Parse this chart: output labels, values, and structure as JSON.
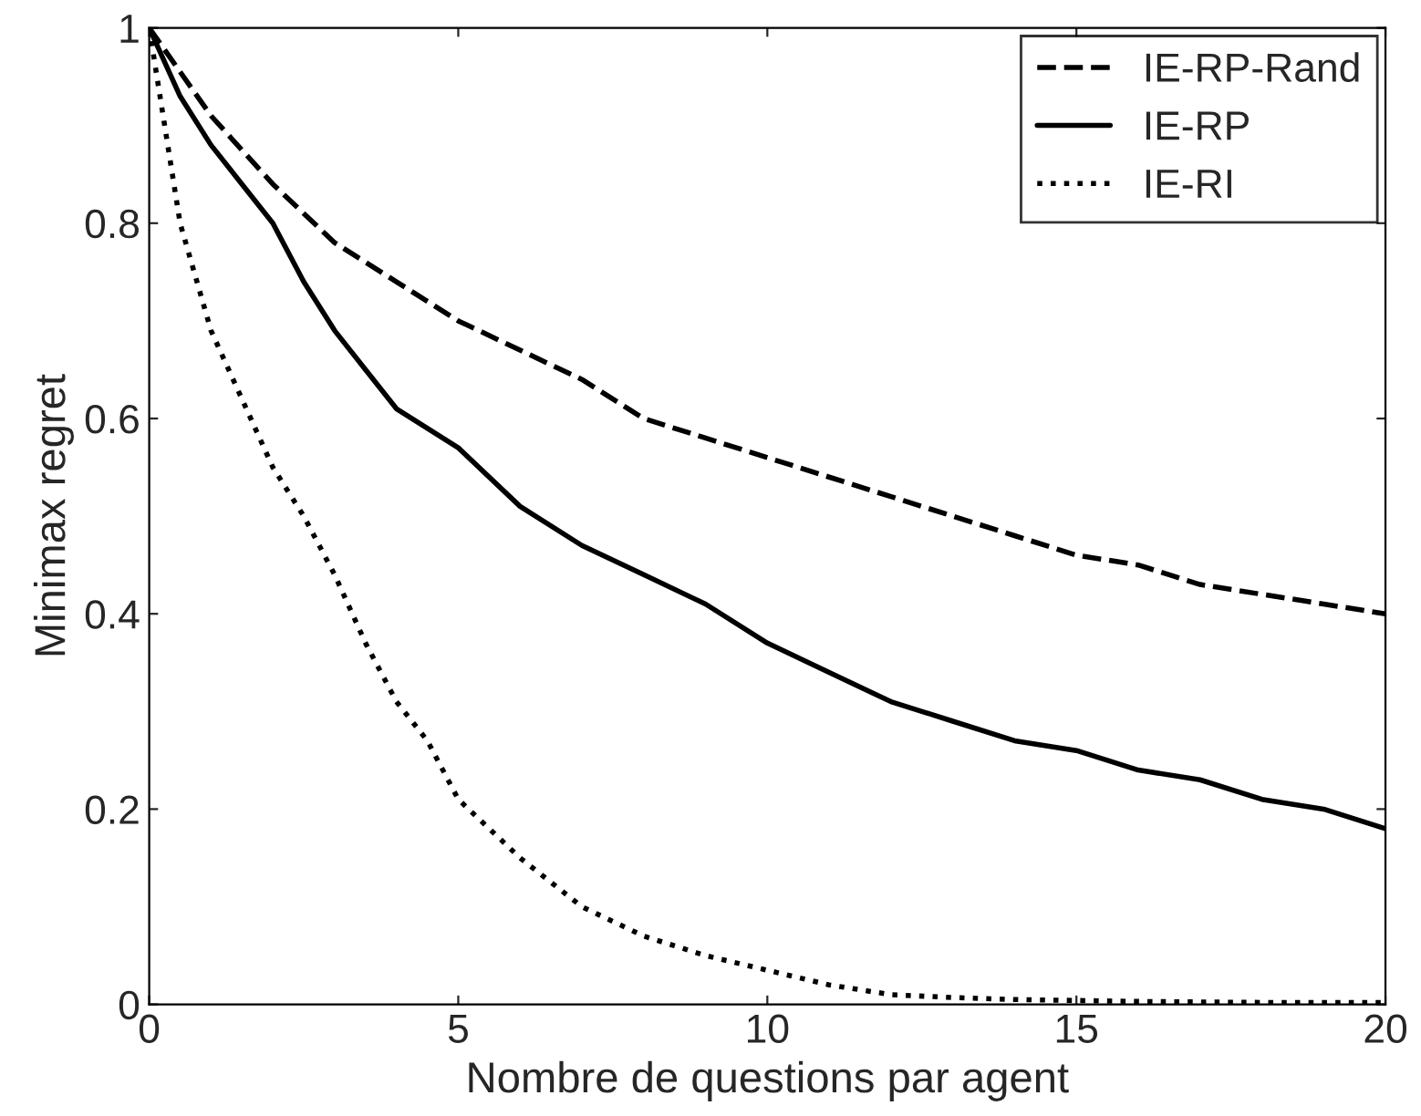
{
  "chart_data": {
    "type": "line",
    "xlabel": "Nombre de questions par agent",
    "ylabel": "Minimax regret",
    "xlim": [
      0,
      20
    ],
    "ylim": [
      0,
      1
    ],
    "xticks": [
      0,
      5,
      10,
      15,
      20
    ],
    "yticks": [
      0,
      0.2,
      0.4,
      0.6,
      0.8,
      1
    ],
    "grid": false,
    "legend": "top right",
    "marker": "none",
    "series": [
      {
        "name": "IE-RP-Rand",
        "color": "#000000",
        "line_style": "dashed",
        "x": [
          0,
          1,
          2,
          3,
          4,
          5,
          6,
          7,
          8,
          9,
          10,
          11,
          12,
          13,
          14,
          15,
          16,
          17,
          18,
          19,
          20
        ],
        "values": [
          1,
          0.91,
          0.84,
          0.78,
          0.74,
          0.7,
          0.67,
          0.64,
          0.6,
          0.58,
          0.56,
          0.54,
          0.52,
          0.5,
          0.48,
          0.46,
          0.45,
          0.43,
          0.42,
          0.41,
          0.4
        ]
      },
      {
        "name": "IE-RP",
        "color": "#000000",
        "line_style": "solid",
        "x": [
          0,
          0.5,
          1,
          1.5,
          2,
          2.5,
          3,
          3.5,
          4,
          5,
          6,
          7,
          8,
          9,
          10,
          11,
          12,
          13,
          14,
          15,
          16,
          17,
          18,
          19,
          20
        ],
        "values": [
          1,
          0.93,
          0.88,
          0.84,
          0.8,
          0.74,
          0.69,
          0.65,
          0.61,
          0.57,
          0.51,
          0.47,
          0.44,
          0.41,
          0.37,
          0.34,
          0.31,
          0.29,
          0.27,
          0.26,
          0.24,
          0.23,
          0.21,
          0.2,
          0.18
        ]
      },
      {
        "name": "IE-RI",
        "color": "#000000",
        "line_style": "dotted",
        "x": [
          0,
          0.5,
          1,
          1.5,
          2,
          2.5,
          3,
          3.5,
          4,
          4.5,
          5,
          6,
          7,
          8,
          9,
          10,
          11,
          12,
          13,
          14,
          15,
          16,
          18,
          20
        ],
        "values": [
          1,
          0.8,
          0.69,
          0.62,
          0.55,
          0.5,
          0.44,
          0.37,
          0.31,
          0.27,
          0.21,
          0.15,
          0.1,
          0.07,
          0.05,
          0.035,
          0.02,
          0.01,
          0.007,
          0.005,
          0.004,
          0.003,
          0.002,
          0.002
        ]
      }
    ]
  }
}
